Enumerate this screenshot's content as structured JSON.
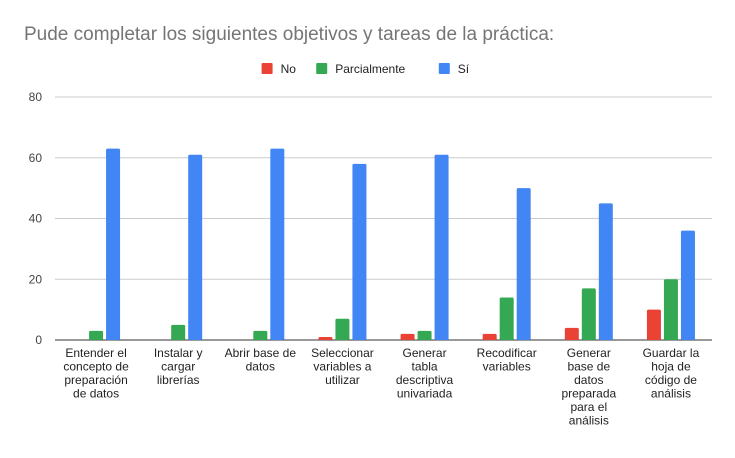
{
  "chart_data": {
    "type": "bar",
    "title": "Pude completar los siguientes objetivos y tareas de la práctica:",
    "categories": [
      [
        "Entender el",
        "concepto de",
        "preparación",
        "de datos"
      ],
      [
        "Instalar y",
        "cargar",
        "librerías"
      ],
      [
        "Abrir base de",
        "datos"
      ],
      [
        "Seleccionar",
        "variables a",
        "utilizar"
      ],
      [
        "Generar",
        "tabla",
        "descriptiva",
        "univariada"
      ],
      [
        "Recodificar",
        "variables"
      ],
      [
        "Generar",
        "base de",
        "datos",
        "preparada",
        "para el",
        "análisis"
      ],
      [
        "Guardar la",
        "hoja de",
        "código de",
        "análisis"
      ]
    ],
    "series": [
      {
        "name": "No",
        "color": "#ea4335",
        "values": [
          0,
          0,
          0,
          1,
          2,
          2,
          4,
          10
        ]
      },
      {
        "name": "Parcialmente",
        "color": "#34a853",
        "values": [
          3,
          5,
          3,
          7,
          3,
          14,
          17,
          20
        ]
      },
      {
        "name": "Sí",
        "color": "#4285f4",
        "values": [
          63,
          61,
          63,
          58,
          61,
          50,
          45,
          36
        ]
      }
    ],
    "ylim": [
      0,
      80
    ],
    "yticks": [
      0,
      20,
      40,
      60,
      80
    ],
    "grid": true,
    "legend": "top-center"
  }
}
